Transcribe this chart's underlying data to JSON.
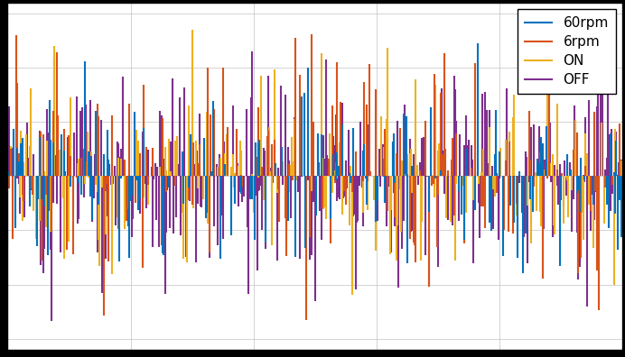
{
  "title": "",
  "xlabel": "",
  "ylabel": "",
  "legend_labels": [
    "60rpm",
    "6rpm",
    "ON",
    "OFF"
  ],
  "colors": [
    "#0072BD",
    "#D95319",
    "#EDB120",
    "#7E2F8E"
  ],
  "n_points": 500,
  "ylim": [
    -1.6,
    1.6
  ],
  "xlim": [
    0,
    500
  ],
  "background_color": "#ffffff",
  "fig_background": "#000000",
  "grid_color": "#c0c0c0",
  "linewidth": 1.5,
  "seed": 42
}
